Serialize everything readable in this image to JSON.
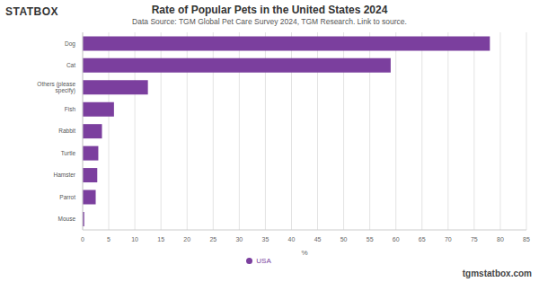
{
  "chart_data": {
    "type": "bar",
    "title": "Rate of Popular Pets in the United States 2024",
    "subtitle": "Data Source: TGM Global Pet Care Survey 2024, TGM Research. Link to source.",
    "annotations": [
      "STATBOX",
      "tgmstatbox.com"
    ],
    "x_label": "%",
    "orientation": "horizontal",
    "categories": [
      "Dog",
      "Cat",
      "Others (please specify)",
      "Fish",
      "Rabbit",
      "Turtle",
      "Hamster",
      "Parrot",
      "Mouse"
    ],
    "series": [
      {
        "name": "USA",
        "color": "#7b3f9e",
        "values": [
          78,
          59,
          12.5,
          6,
          3.7,
          3,
          2.8,
          2.5,
          0.3
        ]
      }
    ],
    "xlim": [
      0,
      85
    ],
    "xticks": [
      0,
      5,
      10,
      15,
      20,
      25,
      30,
      35,
      40,
      45,
      50,
      55,
      60,
      65,
      70,
      75,
      80,
      85
    ],
    "grid": true,
    "legend": "bottom"
  }
}
